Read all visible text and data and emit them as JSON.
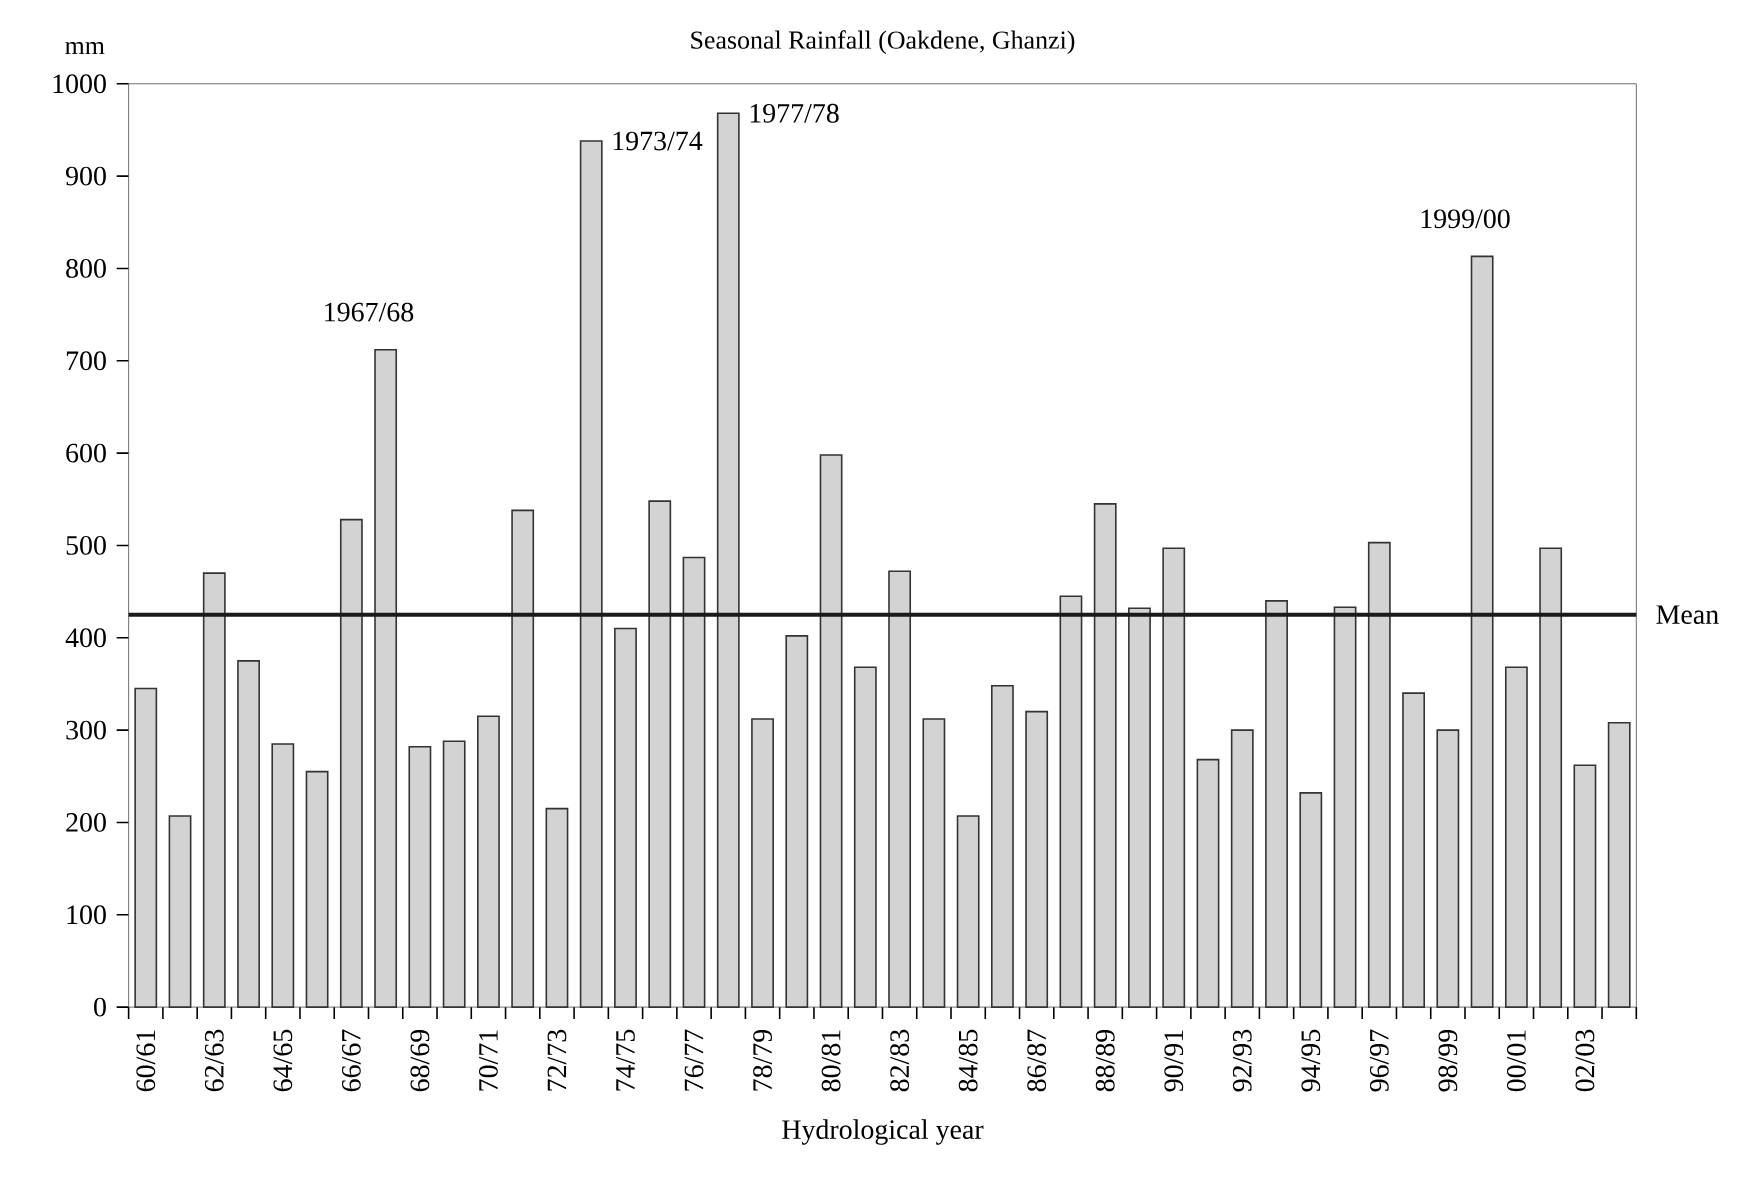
{
  "chart_data": {
    "type": "bar",
    "title": "Seasonal Rainfall (Oakdene, Ghanzi)",
    "xlabel": "Hydrological year",
    "ylabel": "mm",
    "categories": [
      "60/61",
      null,
      "62/63",
      null,
      "64/65",
      null,
      "66/67",
      null,
      "68/69",
      null,
      "70/71",
      null,
      "72/73",
      null,
      "74/75",
      null,
      "76/77",
      null,
      "78/79",
      null,
      "80/81",
      null,
      "82/83",
      null,
      "84/85",
      null,
      "86/87",
      null,
      "88/89",
      null,
      "90/91",
      null,
      "92/93",
      null,
      "94/95",
      null,
      "96/97",
      null,
      "98/99",
      null,
      "00/01",
      null,
      "02/03",
      null
    ],
    "values": [
      345,
      207,
      470,
      375,
      285,
      255,
      528,
      712,
      282,
      288,
      315,
      538,
      215,
      938,
      410,
      548,
      487,
      968,
      312,
      402,
      598,
      368,
      472,
      312,
      207,
      348,
      320,
      445,
      545,
      432,
      497,
      268,
      300,
      440,
      232,
      433,
      503,
      340,
      300,
      813,
      368,
      497,
      262,
      308
    ],
    "color": "#d3d3d3",
    "ylim": [
      0,
      1000
    ],
    "yticks": [
      0,
      100,
      200,
      300,
      400,
      500,
      600,
      700,
      800,
      900,
      1000
    ],
    "ref_lines": [
      {
        "axis": "y",
        "value": 425,
        "label": "Mean",
        "color": "#1a1a1a"
      }
    ],
    "annotations": [
      "1967/68",
      "1973/74",
      "1977/78",
      "1999/00"
    ],
    "grid": false
  }
}
